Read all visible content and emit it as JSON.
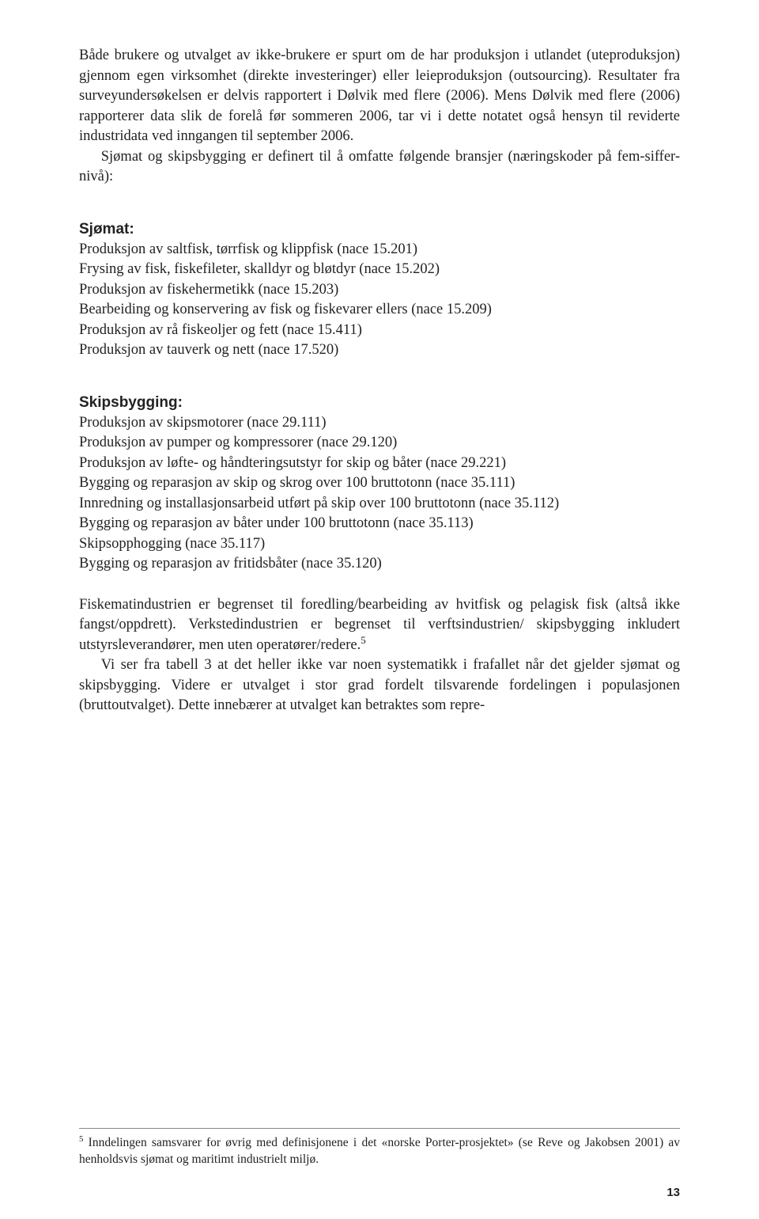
{
  "intro": {
    "p1": "Både brukere og utvalget av ikke-brukere er spurt om de har produksjon i utlandet (uteproduksjon) gjennom egen virksomhet (direkte investeringer) eller leieproduksjon (outsourcing). Resultater fra surveyundersøkelsen er delvis rapportert i Dølvik med flere (2006). Mens Dølvik med flere (2006) rapporterer data slik de forelå før sommeren 2006, tar vi i dette notatet også hensyn til reviderte industridata ved inngangen til september 2006.",
    "p2": "Sjømat og skipsbygging er definert til å omfatte følgende bransjer (næringskoder på fem-siffer-nivå):"
  },
  "sjomat": {
    "heading": "Sjømat:",
    "lines": [
      "Produksjon av saltfisk, tørrfisk og klippfisk (nace 15.201)",
      "Frysing av fisk, fiskefileter, skalldyr og bløtdyr (nace 15.202)",
      "Produksjon av fiskehermetikk (nace 15.203)",
      "Bearbeiding og konservering av fisk og fiskevarer ellers (nace 15.209)",
      "Produksjon av rå fiskeoljer og fett (nace 15.411)",
      "Produksjon av tauverk og nett (nace 17.520)"
    ]
  },
  "skipsbygging": {
    "heading": "Skipsbygging:",
    "lines": [
      "Produksjon av skipsmotorer (nace 29.111)",
      "Produksjon av pumper og kompressorer (nace 29.120)",
      "Produksjon av løfte- og håndteringsutstyr for skip og båter (nace 29.221)",
      "Bygging og reparasjon av skip og skrog over 100 bruttotonn (nace 35.111)",
      "Innredning og installasjonsarbeid utført på skip over 100 bruttotonn (nace 35.112)",
      "Bygging og reparasjon av båter under 100 bruttotonn (nace 35.113)",
      "Skipsopphogging (nace 35.117)",
      "Bygging og reparasjon av fritidsbåter (nace 35.120)"
    ]
  },
  "closing": {
    "p1a": "Fiskematindustrien er begrenset til foredling/bearbeiding av hvitfisk og pelagisk fisk (altså ikke fangst/oppdrett). Verkstedindustrien er begrenset til verftsindustrien/ skipsbygging inkludert utstyrsleverandører, men uten operatører/redere.",
    "p1sup": "5",
    "p2": "Vi ser fra tabell 3 at det heller ikke var noen systematikk i frafallet når det gjelder sjømat og skipsbygging. Videre er utvalget i stor grad fordelt tilsvarende fordelingen i populasjonen (bruttoutvalget). Dette innebærer at utvalget kan betraktes som repre-"
  },
  "footnote": {
    "sup": "5",
    "text": " Inndelingen samsvarer for øvrig med definisjonene i det «norske Porter-prosjektet» (se Reve og Jakobsen 2001) av henholdsvis sjømat og maritimt industrielt miljø."
  },
  "pagenum": "13"
}
